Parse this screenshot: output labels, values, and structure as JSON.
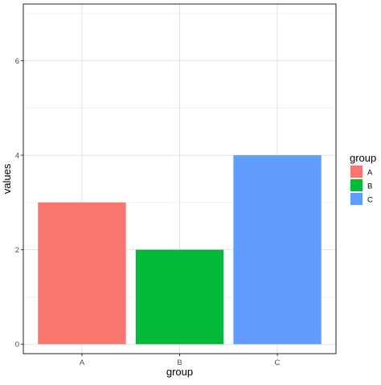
{
  "chart_data": {
    "type": "bar",
    "categories": [
      "A",
      "B",
      "C"
    ],
    "values": [
      3,
      2,
      4
    ],
    "colors": [
      "#F8766D",
      "#00BA38",
      "#619CFF"
    ],
    "xlabel": "group",
    "ylabel": "values",
    "ylim": [
      -0.2,
      7.2
    ],
    "yticks": [
      0,
      2,
      4,
      6
    ],
    "grid": true,
    "legend": {
      "title": "group",
      "placement": "right",
      "items": [
        {
          "label": "A",
          "color": "#F8766D"
        },
        {
          "label": "B",
          "color": "#00BA38"
        },
        {
          "label": "C",
          "color": "#619CFF"
        }
      ]
    }
  }
}
